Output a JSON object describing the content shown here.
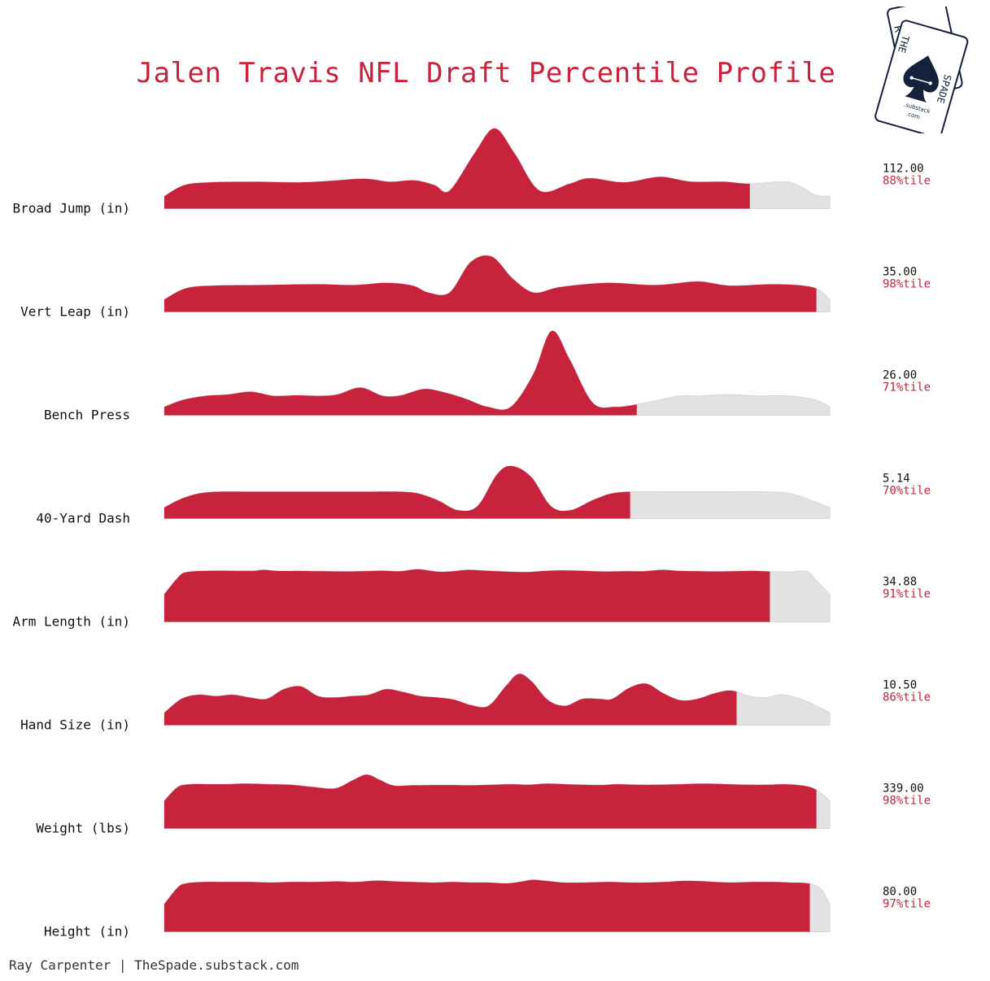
{
  "title": "Jalen Travis NFL Draft Percentile Profile",
  "footer": "Ray Carpenter | TheSpade.substack.com",
  "logo": {
    "icon": "spade-playing-cards-icon",
    "back_card_letters": "R C",
    "front_card_left": "THE",
    "front_card_right": "SPADE",
    "domain_line1": ".substack",
    "domain_line2": ".com",
    "navy": "#14213d"
  },
  "colors": {
    "fill": "#c8233d",
    "remainder": "#e2e2e2",
    "percentile_text": "#c8233d",
    "value_text": "#111111"
  },
  "chart_data": {
    "type": "area",
    "title": "Jalen Travis NFL Draft Percentile Profile",
    "xlim": [
      0,
      100
    ],
    "metrics": [
      {
        "label": "Broad Jump (in)",
        "value": "112.00",
        "percentile_label": "88%tile",
        "percentile": 88,
        "density": [
          [
            0,
            0.45
          ],
          [
            4,
            0.85
          ],
          [
            9,
            0.95
          ],
          [
            18,
            0.97
          ],
          [
            27,
            0.95
          ],
          [
            33,
            1.0
          ],
          [
            40,
            1.08
          ],
          [
            45,
            0.97
          ],
          [
            50,
            1.02
          ],
          [
            54,
            0.85
          ],
          [
            57,
            0.65
          ],
          [
            62,
            2.0
          ],
          [
            66,
            2.9
          ],
          [
            70,
            2.0
          ],
          [
            75,
            0.65
          ],
          [
            81,
            0.9
          ],
          [
            85,
            1.1
          ],
          [
            92,
            0.95
          ],
          [
            99,
            1.15
          ],
          [
            105,
            0.98
          ],
          [
            112,
            0.97
          ],
          [
            117,
            0.9
          ],
          [
            125,
            0.95
          ],
          [
            130,
            0.5
          ],
          [
            133,
            0.45
          ]
        ]
      },
      {
        "label": "Vert Leap (in)",
        "value": "35.00",
        "percentile_label": "98%tile",
        "percentile": 98,
        "density": [
          [
            0,
            0.45
          ],
          [
            4,
            0.85
          ],
          [
            9,
            0.95
          ],
          [
            18,
            0.97
          ],
          [
            29,
            1.0
          ],
          [
            36,
            0.97
          ],
          [
            42,
            1.05
          ],
          [
            47,
            0.95
          ],
          [
            50,
            0.7
          ],
          [
            54,
            0.7
          ],
          [
            58,
            1.8
          ],
          [
            62,
            2.0
          ],
          [
            66,
            1.2
          ],
          [
            70,
            0.7
          ],
          [
            75,
            0.9
          ],
          [
            84,
            1.05
          ],
          [
            93,
            0.97
          ],
          [
            101,
            1.1
          ],
          [
            107,
            0.95
          ],
          [
            115,
            1.0
          ],
          [
            121,
            0.95
          ],
          [
            124,
            0.8
          ],
          [
            126,
            0.45
          ]
        ]
      },
      {
        "label": "Bench Press",
        "value": "26.00",
        "percentile_label": "71%tile",
        "percentile": 71,
        "density": [
          [
            0,
            0.3
          ],
          [
            4,
            0.55
          ],
          [
            9,
            0.7
          ],
          [
            14,
            0.75
          ],
          [
            19,
            0.85
          ],
          [
            24,
            0.7
          ],
          [
            29,
            0.72
          ],
          [
            34,
            0.7
          ],
          [
            38,
            0.75
          ],
          [
            43,
            1.0
          ],
          [
            48,
            0.7
          ],
          [
            52,
            0.72
          ],
          [
            57,
            0.95
          ],
          [
            62,
            0.8
          ],
          [
            66,
            0.6
          ],
          [
            71,
            0.3
          ],
          [
            76,
            0.3
          ],
          [
            81,
            1.5
          ],
          [
            85,
            3.05
          ],
          [
            89,
            2.0
          ],
          [
            94,
            0.45
          ],
          [
            99,
            0.3
          ],
          [
            104,
            0.4
          ],
          [
            110,
            0.6
          ],
          [
            113,
            0.7
          ],
          [
            118,
            0.7
          ],
          [
            124,
            0.75
          ],
          [
            130,
            0.7
          ],
          [
            137,
            0.7
          ],
          [
            143,
            0.55
          ],
          [
            146,
            0.3
          ]
        ]
      },
      {
        "label": "40-Yard Dash",
        "value": "5.14",
        "percentile_label": "70%tile",
        "percentile": 70,
        "density": [
          [
            0,
            0.4
          ],
          [
            4,
            0.75
          ],
          [
            9,
            0.95
          ],
          [
            18,
            0.97
          ],
          [
            30,
            0.97
          ],
          [
            40,
            0.97
          ],
          [
            48,
            0.97
          ],
          [
            52,
            0.9
          ],
          [
            56,
            0.65
          ],
          [
            60,
            0.3
          ],
          [
            64,
            0.45
          ],
          [
            68,
            1.6
          ],
          [
            71,
            1.9
          ],
          [
            75,
            1.5
          ],
          [
            79,
            0.45
          ],
          [
            83,
            0.3
          ],
          [
            88,
            0.7
          ],
          [
            93,
            0.95
          ],
          [
            103,
            0.97
          ],
          [
            115,
            0.97
          ],
          [
            122,
            0.97
          ],
          [
            128,
            0.9
          ],
          [
            133,
            0.6
          ],
          [
            136,
            0.4
          ]
        ]
      },
      {
        "label": "Arm Length (in)",
        "value": "34.88",
        "percentile_label": "91%tile",
        "percentile": 91,
        "density": [
          [
            0,
            1.0
          ],
          [
            3,
            1.6
          ],
          [
            5,
            1.8
          ],
          [
            11,
            1.85
          ],
          [
            19,
            1.84
          ],
          [
            22,
            1.88
          ],
          [
            25,
            1.84
          ],
          [
            30,
            1.84
          ],
          [
            35,
            1.83
          ],
          [
            40,
            1.82
          ],
          [
            44,
            1.83
          ],
          [
            48,
            1.85
          ],
          [
            52,
            1.83
          ],
          [
            56,
            1.9
          ],
          [
            60,
            1.82
          ],
          [
            63,
            1.82
          ],
          [
            67,
            1.88
          ],
          [
            71,
            1.85
          ],
          [
            75,
            1.82
          ],
          [
            80,
            1.8
          ],
          [
            84,
            1.84
          ],
          [
            88,
            1.86
          ],
          [
            93,
            1.84
          ],
          [
            97,
            1.82
          ],
          [
            102,
            1.83
          ],
          [
            106,
            1.83
          ],
          [
            110,
            1.88
          ],
          [
            114,
            1.84
          ],
          [
            118,
            1.83
          ],
          [
            122,
            1.82
          ],
          [
            126,
            1.83
          ],
          [
            130,
            1.84
          ],
          [
            134,
            1.82
          ],
          [
            138,
            1.8
          ],
          [
            142,
            1.83
          ],
          [
            144,
            1.5
          ],
          [
            147,
            1.0
          ]
        ]
      },
      {
        "label": "Hand Size (in)",
        "value": "10.50",
        "percentile_label": "86%tile",
        "percentile": 86,
        "density": [
          [
            0,
            0.45
          ],
          [
            4,
            0.95
          ],
          [
            8,
            1.1
          ],
          [
            12,
            1.05
          ],
          [
            16,
            1.1
          ],
          [
            20,
            1.0
          ],
          [
            24,
            0.95
          ],
          [
            28,
            1.3
          ],
          [
            32,
            1.4
          ],
          [
            36,
            1.05
          ],
          [
            40,
            1.0
          ],
          [
            44,
            1.05
          ],
          [
            48,
            1.1
          ],
          [
            52,
            1.3
          ],
          [
            56,
            1.2
          ],
          [
            60,
            1.05
          ],
          [
            64,
            1.0
          ],
          [
            68,
            0.92
          ],
          [
            72,
            0.72
          ],
          [
            76,
            0.7
          ],
          [
            80,
            1.4
          ],
          [
            83,
            1.85
          ],
          [
            86,
            1.6
          ],
          [
            90,
            0.9
          ],
          [
            94,
            0.7
          ],
          [
            98,
            0.95
          ],
          [
            102,
            0.95
          ],
          [
            105,
            0.95
          ],
          [
            109,
            1.35
          ],
          [
            113,
            1.5
          ],
          [
            117,
            1.15
          ],
          [
            121,
            0.9
          ],
          [
            125,
            0.95
          ],
          [
            129,
            1.15
          ],
          [
            133,
            1.25
          ],
          [
            137,
            1.05
          ],
          [
            141,
            1.0
          ],
          [
            145,
            1.1
          ],
          [
            150,
            0.9
          ],
          [
            156,
            0.45
          ]
        ]
      },
      {
        "label": "Weight (lbs)",
        "value": "339.00",
        "percentile_label": "98%tile",
        "percentile": 98,
        "density": [
          [
            0,
            1.0
          ],
          [
            3,
            1.5
          ],
          [
            6,
            1.6
          ],
          [
            10,
            1.6
          ],
          [
            14,
            1.6
          ],
          [
            18,
            1.62
          ],
          [
            23,
            1.6
          ],
          [
            28,
            1.58
          ],
          [
            33,
            1.5
          ],
          [
            38,
            1.45
          ],
          [
            42,
            1.75
          ],
          [
            45,
            1.95
          ],
          [
            48,
            1.75
          ],
          [
            51,
            1.55
          ],
          [
            55,
            1.56
          ],
          [
            60,
            1.57
          ],
          [
            64,
            1.57
          ],
          [
            68,
            1.56
          ],
          [
            73,
            1.58
          ],
          [
            77,
            1.6
          ],
          [
            81,
            1.58
          ],
          [
            85,
            1.62
          ],
          [
            89,
            1.6
          ],
          [
            93,
            1.58
          ],
          [
            97,
            1.57
          ],
          [
            101,
            1.6
          ],
          [
            105,
            1.58
          ],
          [
            110,
            1.58
          ],
          [
            115,
            1.6
          ],
          [
            120,
            1.62
          ],
          [
            125,
            1.6
          ],
          [
            130,
            1.58
          ],
          [
            134,
            1.58
          ],
          [
            138,
            1.6
          ],
          [
            142,
            1.55
          ],
          [
            145,
            1.4
          ],
          [
            148,
            1.0
          ]
        ]
      },
      {
        "label": "Height (in)",
        "value": "80.00",
        "percentile_label": "97%tile",
        "percentile": 97,
        "density": [
          [
            0,
            1.0
          ],
          [
            3,
            1.6
          ],
          [
            5,
            1.75
          ],
          [
            9,
            1.8
          ],
          [
            14,
            1.8
          ],
          [
            19,
            1.8
          ],
          [
            24,
            1.78
          ],
          [
            29,
            1.8
          ],
          [
            34,
            1.8
          ],
          [
            39,
            1.82
          ],
          [
            43,
            1.8
          ],
          [
            48,
            1.85
          ],
          [
            52,
            1.82
          ],
          [
            56,
            1.8
          ],
          [
            61,
            1.78
          ],
          [
            65,
            1.8
          ],
          [
            69,
            1.78
          ],
          [
            73,
            1.78
          ],
          [
            77,
            1.75
          ],
          [
            80,
            1.8
          ],
          [
            83,
            1.88
          ],
          [
            86,
            1.84
          ],
          [
            90,
            1.78
          ],
          [
            95,
            1.78
          ],
          [
            100,
            1.8
          ],
          [
            105,
            1.78
          ],
          [
            109,
            1.78
          ],
          [
            113,
            1.8
          ],
          [
            117,
            1.84
          ],
          [
            121,
            1.83
          ],
          [
            124,
            1.8
          ],
          [
            128,
            1.78
          ],
          [
            133,
            1.8
          ],
          [
            137,
            1.8
          ],
          [
            141,
            1.78
          ],
          [
            145,
            1.75
          ],
          [
            148,
            1.55
          ],
          [
            150,
            1.0
          ]
        ]
      }
    ]
  }
}
